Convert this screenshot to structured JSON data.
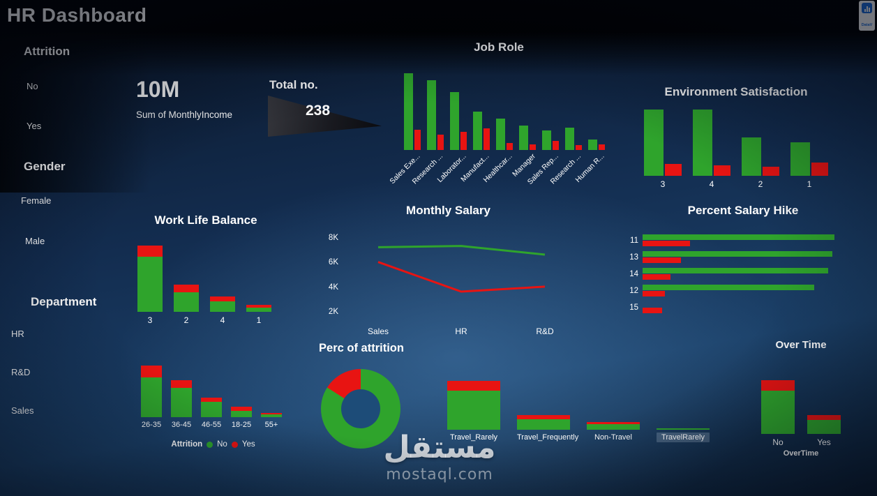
{
  "colors": {
    "green": "#2fa42c",
    "red": "#e81412",
    "background_blue": "#1b4068",
    "header_black": "#000000"
  },
  "header": {
    "title": "HR Dashboard",
    "logo_text": "DataV"
  },
  "sidebar": {
    "sections": [
      {
        "label": "Attrition",
        "items": [
          "No",
          "Yes"
        ]
      },
      {
        "label": "Gender",
        "items": [
          "Female",
          "Male"
        ]
      },
      {
        "label": "Department",
        "items": [
          "HR",
          "R&D",
          "Sales"
        ]
      }
    ]
  },
  "kpis": {
    "monthly_income": {
      "value": "10M",
      "label": "Sum of MonthlyIncome"
    },
    "total": {
      "label": "Total no.",
      "value": "238"
    }
  },
  "watermark": {
    "arabic": "مستقل",
    "latin": "mostaql.com"
  },
  "chart_data": [
    {
      "type": "bar",
      "title": "Job Role",
      "categories": [
        "Sales Exe...",
        "Research ...",
        "Laborator...",
        "Manufact...",
        "Healthcar...",
        "Manager",
        "Sales Rep...",
        "Research ...",
        "Human R..."
      ],
      "series": [
        {
          "name": "No",
          "color": "green",
          "values": [
            110,
            100,
            83,
            55,
            45,
            35,
            28,
            32,
            15
          ]
        },
        {
          "name": "Yes",
          "color": "red",
          "values": [
            29,
            22,
            26,
            31,
            10,
            8,
            13,
            7,
            8
          ]
        }
      ],
      "values_unit": "relative"
    },
    {
      "type": "bar",
      "title": "Environment Satisfaction",
      "categories": [
        "3",
        "4",
        "2",
        "1"
      ],
      "series": [
        {
          "name": "No",
          "color": "green",
          "values": [
            95,
            95,
            55,
            48
          ]
        },
        {
          "name": "Yes",
          "color": "red",
          "values": [
            17,
            15,
            13,
            19
          ]
        }
      ],
      "values_unit": "relative"
    },
    {
      "type": "bar",
      "title": "Work Life Balance",
      "stacked": true,
      "categories": [
        "3",
        "2",
        "4",
        "1"
      ],
      "series": [
        {
          "name": "No",
          "color": "green",
          "values": [
            79,
            28,
            15,
            6
          ]
        },
        {
          "name": "Yes",
          "color": "red",
          "values": [
            16,
            11,
            7,
            4
          ]
        }
      ],
      "values_unit": "relative"
    },
    {
      "type": "line",
      "title": "Monthly Salary",
      "x": [
        "Sales",
        "HR",
        "R&D"
      ],
      "ylim": [
        2000,
        8000
      ],
      "yticks": [
        {
          "label": "8K",
          "value": 8000
        },
        {
          "label": "6K",
          "value": 6000
        },
        {
          "label": "4K",
          "value": 4000
        },
        {
          "label": "2K",
          "value": 2000
        }
      ],
      "series": [
        {
          "name": "No",
          "color": "green",
          "values": [
            7300,
            7400,
            6700
          ]
        },
        {
          "name": "Yes",
          "color": "red",
          "values": [
            6100,
            3700,
            4100
          ]
        }
      ]
    },
    {
      "type": "bar",
      "orientation": "horizontal",
      "title": "Percent Salary Hike",
      "categories": [
        "11",
        "13",
        "14",
        "12",
        "15"
      ],
      "series": [
        {
          "name": "No",
          "color": "green",
          "values": [
            275,
            272,
            266,
            246,
            0
          ]
        },
        {
          "name": "Yes",
          "color": "red",
          "values": [
            68,
            55,
            40,
            32,
            28
          ]
        }
      ],
      "values_unit": "relative"
    },
    {
      "type": "bar",
      "title": "",
      "stacked": true,
      "categories": [
        "26-35",
        "36-45",
        "46-55",
        "18-25",
        "55+"
      ],
      "series": [
        {
          "name": "No",
          "color": "green",
          "values": [
            57,
            42,
            22,
            9,
            4
          ]
        },
        {
          "name": "Yes",
          "color": "red",
          "values": [
            17,
            11,
            6,
            6,
            2
          ]
        }
      ],
      "legend": {
        "title": "Attrition",
        "items": [
          "No",
          "Yes"
        ]
      },
      "values_unit": "relative"
    },
    {
      "type": "pie",
      "title": "Perc of attrition",
      "labels": [
        "No",
        "Yes"
      ],
      "values": [
        84,
        16
      ],
      "values_unit": "percent"
    },
    {
      "type": "bar",
      "title": "",
      "stacked": true,
      "categories": [
        "Travel_Rarely",
        "Travel_Frequently",
        "Non-Travel",
        "TravelRarely"
      ],
      "series": [
        {
          "name": "No",
          "color": "green",
          "values": [
            56,
            15,
            8,
            2
          ]
        },
        {
          "name": "Yes",
          "color": "red",
          "values": [
            14,
            6,
            3,
            0
          ]
        }
      ],
      "values_unit": "relative"
    },
    {
      "type": "bar",
      "title": "Over Time",
      "stacked": true,
      "axis_label": "OverTime",
      "categories": [
        "No",
        "Yes"
      ],
      "series": [
        {
          "name": "No",
          "color": "green",
          "values": [
            62,
            20
          ]
        },
        {
          "name": "Yes",
          "color": "red",
          "values": [
            15,
            7
          ]
        }
      ],
      "values_unit": "relative"
    }
  ]
}
